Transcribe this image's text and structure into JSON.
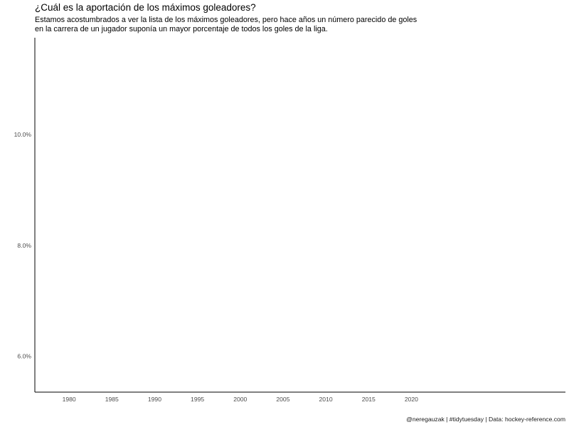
{
  "chart_data": {
    "type": "line",
    "title": "¿Cuál es la aportación de los máximos goleadores?",
    "subtitle": "Estamos acostumbrados a ver la lista de los máximos goleadores, pero hace años un número parecido de goles\nen la carrera de un jugador suponía un mayor porcentaje de todos los goles de la liga.",
    "caption": "@neregauzak | #tidytuesday | Data: hockey-reference.com",
    "xlabel": "",
    "ylabel": "",
    "x_ticks": [
      1980,
      1985,
      1990,
      1995,
      2000,
      2005,
      2010,
      2015,
      2020
    ],
    "y_ticks": [
      0.06,
      0.08,
      0.1
    ],
    "y_tick_labels": [
      "6.0%",
      "8.0%",
      "10.0%"
    ],
    "xlim": [
      1976,
      2038
    ],
    "ylim": [
      0.0535,
      0.1175
    ],
    "grid": false,
    "legend": "none",
    "series": []
  }
}
